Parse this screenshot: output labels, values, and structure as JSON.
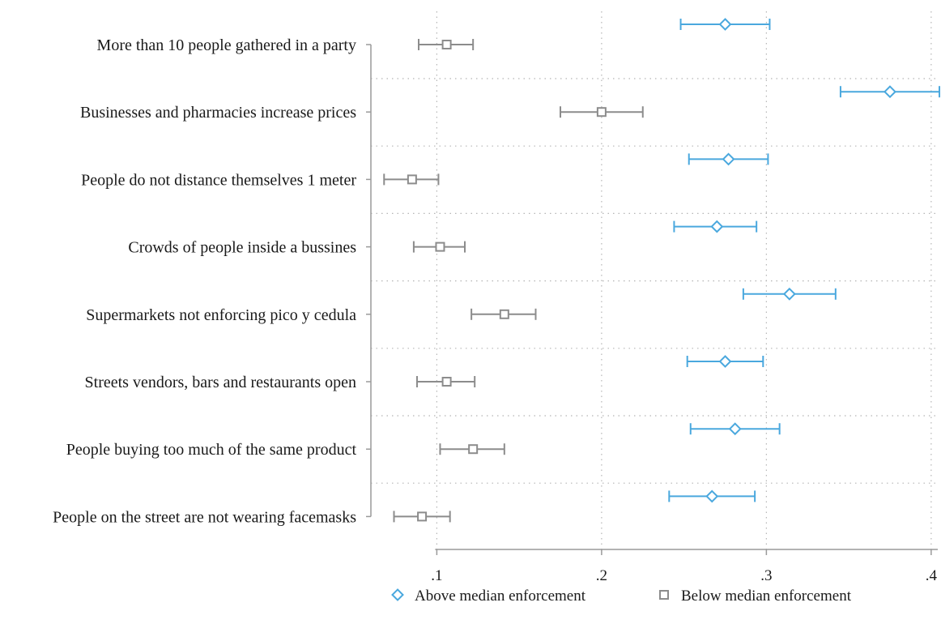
{
  "chart_data": {
    "type": "scatter",
    "subtype": "coefficient-plot-with-confidence-intervals",
    "orientation": "horizontal",
    "categories": [
      "More than 10 people gathered in a party",
      "Businesses and pharmacies increase prices",
      "People do not distance themselves 1 meter",
      "Crowds of people inside a bussines",
      "Supermarkets not enforcing pico y cedula",
      "Streets vendors, bars and restaurants open",
      "People buying too much of the same product",
      "People on the street are not wearing facemasks"
    ],
    "series": [
      {
        "name": "Above median enforcement",
        "marker": "diamond",
        "color": "#4aa8de",
        "estimate": [
          0.275,
          0.375,
          0.277,
          0.27,
          0.314,
          0.275,
          0.281,
          0.267
        ],
        "ci_low": [
          0.248,
          0.345,
          0.253,
          0.244,
          0.286,
          0.252,
          0.254,
          0.241
        ],
        "ci_high": [
          0.302,
          0.405,
          0.301,
          0.294,
          0.342,
          0.298,
          0.308,
          0.293
        ]
      },
      {
        "name": "Below median enforcement",
        "marker": "square",
        "color": "#8c8c8c",
        "estimate": [
          0.106,
          0.2,
          0.085,
          0.102,
          0.141,
          0.106,
          0.122,
          0.091
        ],
        "ci_low": [
          0.089,
          0.175,
          0.068,
          0.086,
          0.121,
          0.088,
          0.102,
          0.074
        ],
        "ci_high": [
          0.122,
          0.225,
          0.101,
          0.117,
          0.16,
          0.123,
          0.141,
          0.108
        ]
      }
    ],
    "xaxis": {
      "ticks": [
        0.1,
        0.2,
        0.3,
        0.4
      ],
      "tick_labels": [
        ".1",
        ".2",
        ".3",
        ".4"
      ],
      "xlim": [
        0.06,
        0.404
      ]
    },
    "grid": "dotted vertical at ticks; dotted horizontal separators between categories",
    "legend": "bottom"
  }
}
